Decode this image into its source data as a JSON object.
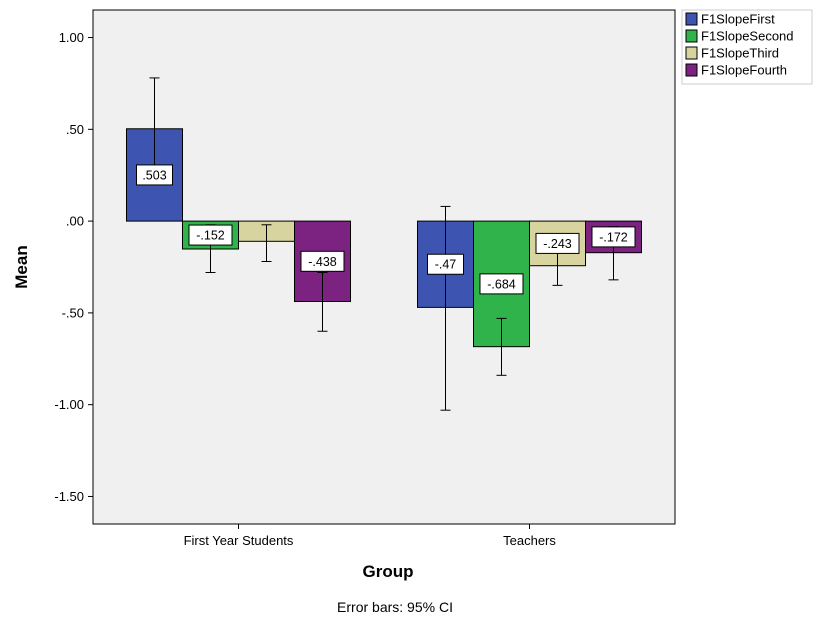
{
  "chart_data": {
    "type": "bar",
    "categories": [
      "First Year Students",
      "Teachers"
    ],
    "series": [
      {
        "name": "F1SlopeFirst",
        "color": "#3d55b0",
        "values": [
          0.503,
          -0.47
        ],
        "labels": [
          ".503",
          "-.47"
        ],
        "ci_low": [
          0.23,
          -1.03
        ],
        "ci_high": [
          0.78,
          0.08
        ]
      },
      {
        "name": "F1SlopeSecond",
        "color": "#2fb34a",
        "values": [
          -0.152,
          -0.684
        ],
        "labels": [
          "-.152",
          "-.684"
        ],
        "ci_low": [
          -0.28,
          -0.84
        ],
        "ci_high": [
          -0.02,
          -0.53
        ]
      },
      {
        "name": "F1SlopeThird",
        "color": "#d8d4a0",
        "values": [
          -0.11,
          -0.243
        ],
        "labels": [
          "",
          "-.243"
        ],
        "ci_low": [
          -0.22,
          -0.35
        ],
        "ci_high": [
          -0.02,
          -0.14
        ]
      },
      {
        "name": "F1SlopeFourth",
        "color": "#7c2381",
        "values": [
          -0.438,
          -0.172
        ],
        "labels": [
          "-.438",
          "-.172"
        ],
        "ci_low": [
          -0.6,
          -0.32
        ],
        "ci_high": [
          -0.28,
          -0.03
        ]
      }
    ],
    "xlabel": "Group",
    "ylabel": "Mean",
    "ylim": [
      -1.65,
      1.15
    ],
    "yticks": [
      1.0,
      0.5,
      0.0,
      -0.5,
      -1.0,
      -1.5
    ],
    "ytick_labels": [
      "1.00",
      ".50",
      ".00",
      "-.50",
      "-1.00",
      "-1.50"
    ],
    "legend_position": "top-right",
    "plot_background": "#f0f0f0",
    "note": "Error bars: 95% CI"
  }
}
